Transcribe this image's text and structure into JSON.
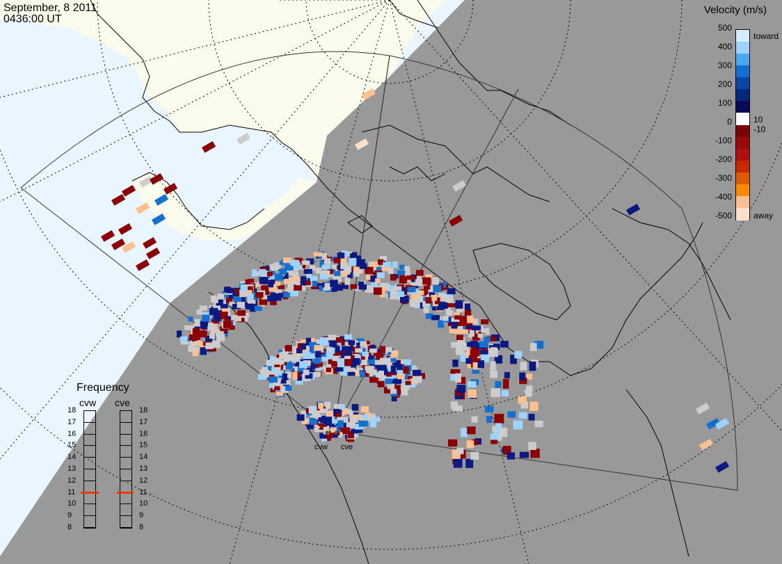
{
  "header": {
    "date": "September, 8 2011",
    "time": "0436:00 UT"
  },
  "velocity_legend": {
    "title": "Velocity (m/s)",
    "ticks": [
      "500",
      "400",
      "300",
      "200",
      "100",
      "0",
      "-100",
      "-200",
      "-300",
      "-400",
      "-500"
    ],
    "labels_right": [
      "toward",
      "10",
      "-10",
      "away"
    ],
    "colors": [
      "#d6ecff",
      "#9fd3ff",
      "#4aa8f0",
      "#1470d0",
      "#0a45a8",
      "#04287a",
      "#0a0a5a",
      "#ffffff",
      "#7a0505",
      "#9a0a0a",
      "#b01010",
      "#c82a00",
      "#e05a00",
      "#ff8a00",
      "#ffc090",
      "#ffe0c8"
    ]
  },
  "frequency_panel": {
    "title": "Frequency",
    "radars": [
      {
        "name": "cvw",
        "value": 11
      },
      {
        "name": "cve",
        "value": 11
      }
    ],
    "scale": [
      "18",
      "17",
      "16",
      "15",
      "14",
      "13",
      "12",
      "11",
      "10",
      "9",
      "8"
    ]
  },
  "radar_sites": [
    "cvw",
    "cve"
  ],
  "colors": {
    "night": "#999999",
    "day_ocean": "#eaf6ff",
    "day_land": "#fbfbec",
    "no_data": "#cccccc",
    "toward": "#0a1a80",
    "away": "#8b0000"
  }
}
